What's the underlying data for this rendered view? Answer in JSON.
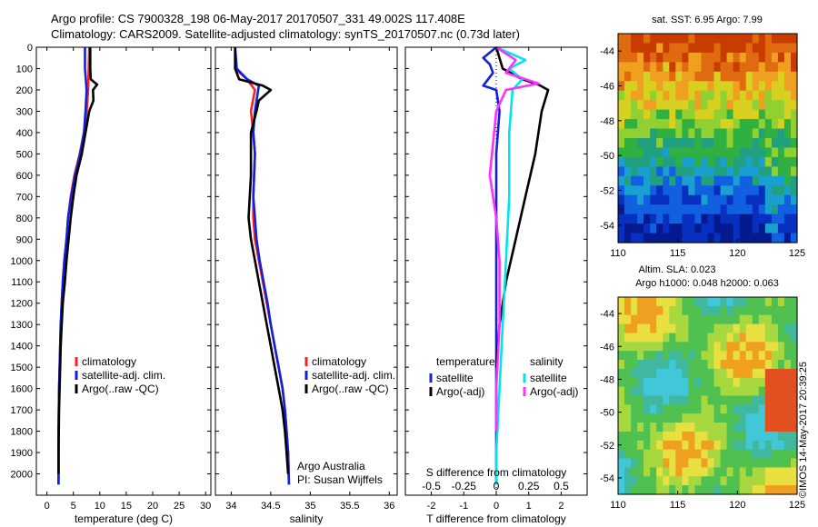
{
  "header": {
    "line1": "Argo profile: CS 7900328_198 06-May-2017 20170507_331 49.002S 117.408E",
    "line2": "Climatology: CARS2009. Satellite-adjusted climatology: synTS_20170507.nc (0.73d later)"
  },
  "stamp": "©IMOS 14-May-2017 20:39:25",
  "colors": {
    "climatology": "#ff2020",
    "satellite": "#1020e0",
    "argo": "#000000",
    "sat_s": "#00e6e6",
    "argo_s": "#ff30ff"
  },
  "chart_data": [
    {
      "type": "line",
      "name": "temperature-panel",
      "xlabel": "temperature (deg C)",
      "xlim": [
        -2,
        31
      ],
      "ylim": [
        2100,
        0
      ],
      "xticks": [
        "0",
        "5",
        "10",
        "15",
        "20",
        "25",
        "30"
      ],
      "xtick_values": [
        0,
        5,
        10,
        15,
        20,
        25,
        30
      ],
      "yticks": [
        "0",
        "100",
        "200",
        "300",
        "400",
        "500",
        "600",
        "700",
        "800",
        "900",
        "1000",
        "1100",
        "1200",
        "1300",
        "1400",
        "1500",
        "1600",
        "1700",
        "1800",
        "1900",
        "2000"
      ],
      "ytick_values": [
        0,
        100,
        200,
        300,
        400,
        500,
        600,
        700,
        800,
        900,
        1000,
        1100,
        1200,
        1300,
        1400,
        1500,
        1600,
        1700,
        1800,
        1900,
        2000
      ],
      "legend": [
        "climatology",
        "satellite-adj. clim.",
        "Argo(..raw -QC)"
      ],
      "series": [
        {
          "key": "climatology",
          "x": [
            8,
            7.9,
            7.8,
            7.5,
            7.0,
            6.2,
            5.2,
            4.5,
            4.0,
            3.7,
            3.3,
            3.0,
            2.8,
            2.6,
            2.5,
            2.4,
            2.3,
            2.25,
            2.2,
            2.2,
            2.2
          ],
          "y": [
            0,
            100,
            200,
            300,
            400,
            500,
            600,
            700,
            800,
            900,
            1000,
            1100,
            1200,
            1300,
            1400,
            1500,
            1600,
            1700,
            1800,
            1900,
            2050
          ]
        },
        {
          "key": "satellite",
          "x": [
            7.2,
            7.2,
            7.5,
            7.3,
            7.0,
            6.3,
            5.3,
            4.6,
            4.0,
            3.7,
            3.3,
            3.0,
            2.8,
            2.6,
            2.5,
            2.4,
            2.3,
            2.25,
            2.2,
            2.2,
            2.2
          ],
          "y": [
            0,
            100,
            200,
            300,
            400,
            500,
            600,
            700,
            800,
            900,
            1000,
            1100,
            1200,
            1300,
            1400,
            1500,
            1600,
            1700,
            1800,
            1900,
            2050
          ]
        },
        {
          "key": "argo",
          "x": [
            8.2,
            8.2,
            8.3,
            9.5,
            8.7,
            8.8,
            8.0,
            7.3,
            6.6,
            5.6,
            5.0,
            4.5,
            4.1,
            3.7,
            3.4,
            3.0,
            2.8,
            2.6,
            2.5,
            2.4,
            2.3,
            2.25,
            2.2,
            2.2
          ],
          "y": [
            0,
            100,
            150,
            175,
            200,
            250,
            300,
            400,
            500,
            600,
            700,
            800,
            900,
            1000,
            1100,
            1200,
            1300,
            1400,
            1500,
            1600,
            1700,
            1800,
            1900,
            2000
          ]
        }
      ]
    },
    {
      "type": "line",
      "name": "salinity-panel",
      "xlabel": "salinity",
      "xlim": [
        33.8,
        36.1
      ],
      "ylim": [
        2100,
        0
      ],
      "xticks": [
        "34",
        "34.5",
        "35",
        "35.5",
        "36"
      ],
      "xtick_values": [
        34,
        34.5,
        35,
        35.5,
        36
      ],
      "legend": [
        "climatology",
        "satellite-adj. clim.",
        "Argo(..raw -QC)"
      ],
      "annotation": [
        "Argo Australia",
        "PI: Susan Wijffels"
      ],
      "series": [
        {
          "key": "climatology",
          "x": [
            34.05,
            34.05,
            34.2,
            34.3,
            34.25,
            34.28,
            34.3,
            34.28,
            34.28,
            34.3,
            34.35,
            34.4,
            34.45,
            34.5,
            34.55,
            34.6,
            34.65,
            34.68,
            34.7,
            34.72,
            34.73
          ],
          "y": [
            0,
            100,
            150,
            200,
            300,
            400,
            500,
            700,
            800,
            900,
            1000,
            1100,
            1200,
            1300,
            1400,
            1500,
            1600,
            1700,
            1800,
            1900,
            2050
          ]
        },
        {
          "key": "satellite",
          "x": [
            34.05,
            34.07,
            34.2,
            34.35,
            34.3,
            34.28,
            34.3,
            34.28,
            34.3,
            34.32,
            34.36,
            34.41,
            34.46,
            34.5,
            34.55,
            34.6,
            34.65,
            34.68,
            34.7,
            34.72,
            34.73
          ],
          "y": [
            0,
            100,
            150,
            180,
            300,
            400,
            500,
            700,
            800,
            900,
            1000,
            1100,
            1200,
            1300,
            1400,
            1500,
            1600,
            1700,
            1800,
            1900,
            2050
          ]
        },
        {
          "key": "argo",
          "x": [
            34.05,
            34.05,
            34.1,
            34.4,
            34.5,
            34.35,
            34.32,
            34.25,
            34.25,
            34.22,
            34.25,
            34.3,
            34.35,
            34.4,
            34.45,
            34.5,
            34.55,
            34.6,
            34.65,
            34.68,
            34.7,
            34.72
          ],
          "y": [
            0,
            100,
            150,
            180,
            200,
            250,
            300,
            400,
            600,
            800,
            900,
            1000,
            1100,
            1200,
            1300,
            1400,
            1500,
            1600,
            1700,
            1800,
            1900,
            2000
          ]
        }
      ]
    },
    {
      "type": "line",
      "name": "difference-panel",
      "xlabel": "T difference from climatology",
      "xlim": [
        -2.8,
        2.8
      ],
      "ylim": [
        2100,
        0
      ],
      "xticks": [
        "-2",
        "-1",
        "0",
        "1",
        "2"
      ],
      "xtick_values": [
        -2,
        -1,
        0,
        1,
        2
      ],
      "top_xlabel": "S difference from climatology",
      "top_xticks": [
        "-0.5",
        "-0.25",
        "0",
        "0.25",
        "0.5"
      ],
      "top_xtick_values": [
        -2,
        -1,
        0,
        1,
        2
      ],
      "legend_temperature_title": "temperature",
      "legend_salinity_title": "salinity",
      "legend": [
        "satellite",
        "Argo(-adj)",
        "satellite",
        "Argo(-adj)"
      ],
      "series": [
        {
          "key": "satellite",
          "x": [
            0,
            -0.4,
            -0.2,
            -0.1,
            -0.4,
            0,
            0.1,
            0,
            0,
            0,
            0,
            0
          ],
          "y": [
            0,
            50,
            80,
            120,
            180,
            200,
            300,
            500,
            800,
            1200,
            1700,
            2050
          ]
        },
        {
          "key": "argo",
          "x": [
            0,
            0.2,
            0.8,
            1.3,
            1.6,
            1.4,
            1.2,
            0.9,
            0.6,
            0.3,
            0.1,
            0
          ],
          "y": [
            0,
            100,
            150,
            175,
            200,
            300,
            500,
            700,
            900,
            1100,
            1300,
            1500
          ]
        },
        {
          "key": "sat_s",
          "x": [
            0,
            0.9,
            0.4,
            0.8,
            0.5,
            0.4,
            0.4,
            0.3,
            0.2,
            0.1,
            0,
            0
          ],
          "y": [
            0,
            60,
            100,
            150,
            200,
            400,
            700,
            1000,
            1300,
            1600,
            1900,
            2050
          ]
        },
        {
          "key": "argo_s",
          "x": [
            0,
            0.6,
            0.3,
            1.3,
            0.3,
            0,
            -0.2,
            0.0,
            0.1,
            0.1,
            0,
            0
          ],
          "y": [
            0,
            60,
            120,
            170,
            200,
            300,
            600,
            800,
            1000,
            1300,
            1600,
            1800
          ]
        }
      ]
    },
    {
      "type": "heatmap",
      "name": "sst-map",
      "title": "sat. SST: 6.95 Argo: 7.99",
      "xlim": [
        110,
        125
      ],
      "ylim": [
        -55,
        -43
      ],
      "xticks": [
        "110",
        "115",
        "120",
        "125"
      ],
      "xtick_values": [
        110,
        115,
        120,
        125
      ],
      "yticks": [
        "-44",
        "-46",
        "-48",
        "-50",
        "-52",
        "-54"
      ],
      "ytick_values": [
        -44,
        -46,
        -48,
        -50,
        -52,
        -54
      ]
    },
    {
      "type": "heatmap",
      "name": "sla-map",
      "title": "Altim. SLA: 0.023",
      "subtitle": "Argo h1000: 0.048 h2000: 0.063",
      "xlim": [
        110,
        125
      ],
      "ylim": [
        -55,
        -43
      ],
      "xticks": [
        "110",
        "115",
        "120",
        "125"
      ],
      "xtick_values": [
        110,
        115,
        120,
        125
      ],
      "yticks": [
        "-44",
        "-46",
        "-48",
        "-50",
        "-52",
        "-54"
      ],
      "ytick_values": [
        -44,
        -46,
        -48,
        -50,
        -52,
        -54
      ]
    }
  ]
}
